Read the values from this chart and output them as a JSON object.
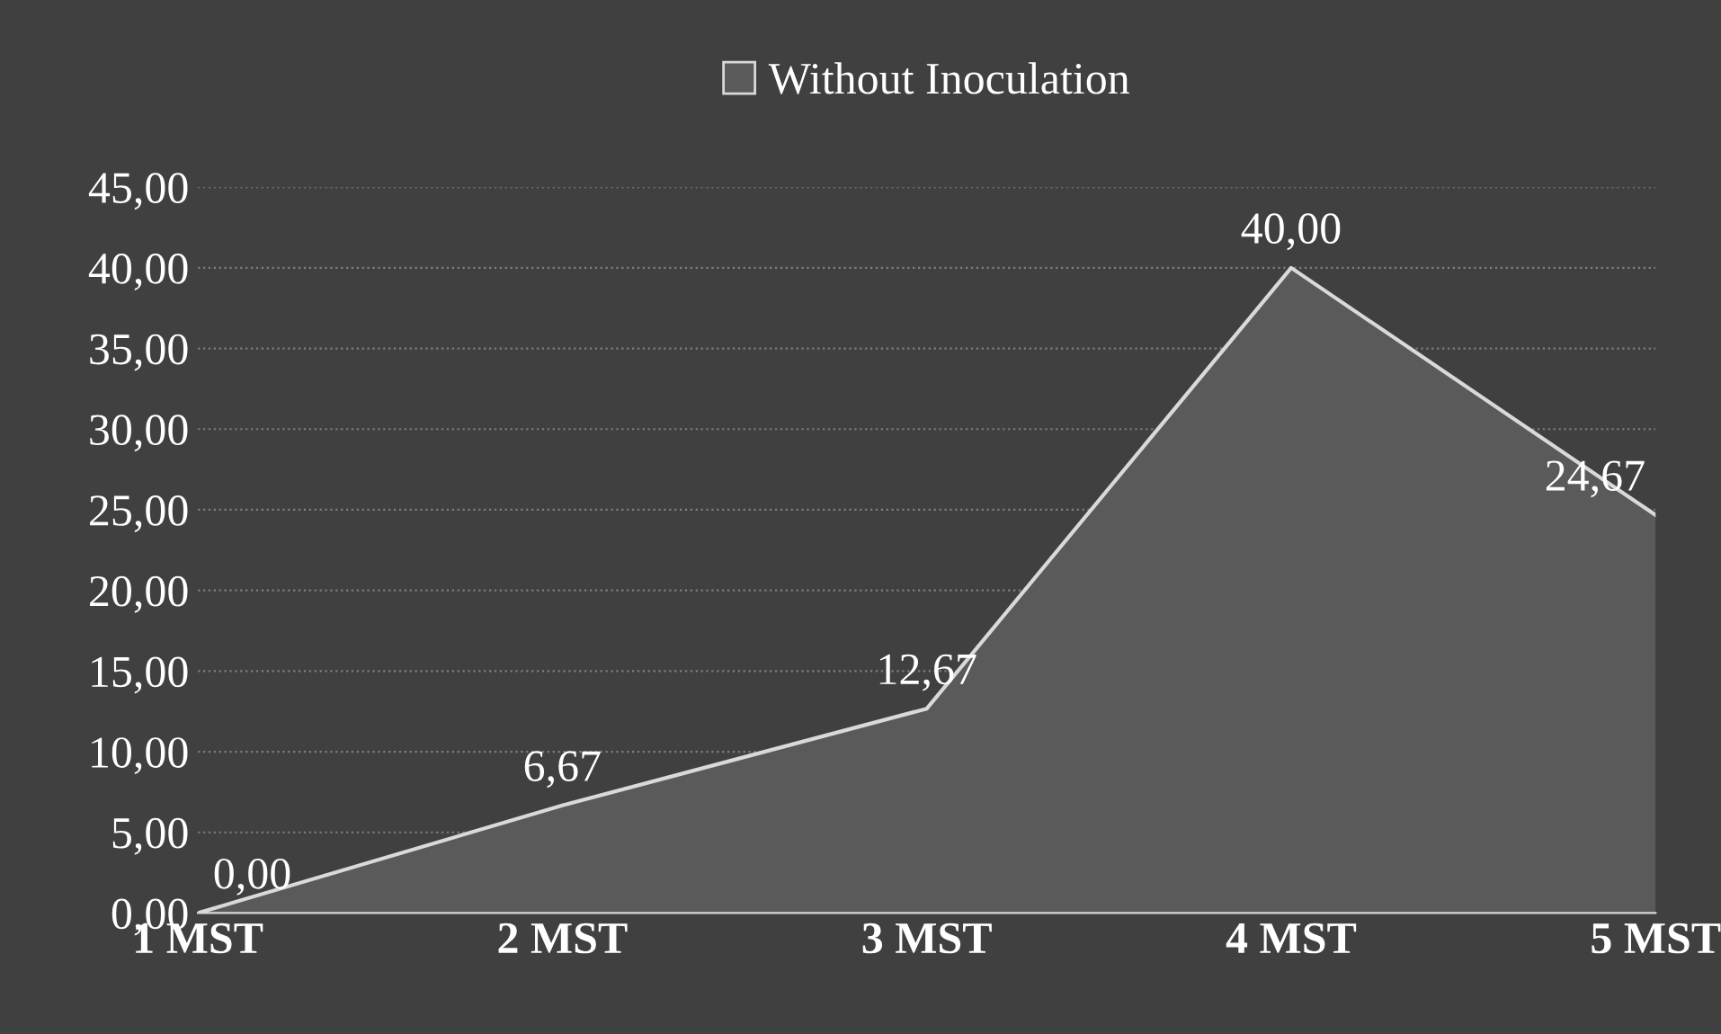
{
  "chart_data": {
    "type": "area",
    "categories": [
      "1 MST",
      "2 MST",
      "3 MST",
      "4 MST",
      "5 MST"
    ],
    "series": [
      {
        "name": "Without Inoculation",
        "color": "#5a5a5a",
        "values": [
          0.0,
          6.67,
          12.67,
          40.0,
          24.67
        ],
        "value_labels": [
          "0,00",
          "6,67",
          "12,67",
          "40,00",
          "24,67"
        ]
      }
    ],
    "ylim": [
      0,
      45
    ],
    "yticks": [
      {
        "value": 0,
        "label": "0,00"
      },
      {
        "value": 5,
        "label": "5,00"
      },
      {
        "value": 10,
        "label": "10,00"
      },
      {
        "value": 15,
        "label": "15,00"
      },
      {
        "value": 20,
        "label": "20,00"
      },
      {
        "value": 25,
        "label": "25,00"
      },
      {
        "value": 30,
        "label": "30,00"
      },
      {
        "value": 35,
        "label": "35,00"
      },
      {
        "value": 40,
        "label": "40,00"
      },
      {
        "value": 45,
        "label": "45,00"
      }
    ],
    "grid": "y",
    "legend": "top"
  }
}
